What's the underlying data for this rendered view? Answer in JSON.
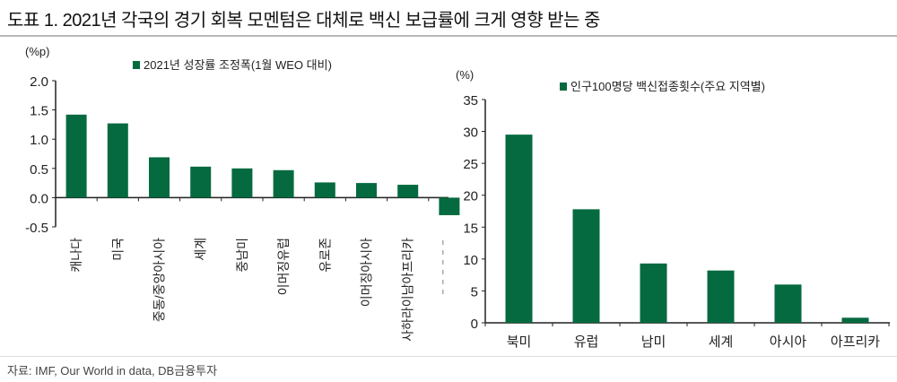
{
  "title": "도표 1. 2021년 각국의 경기 회복 모멘텀은 대체로 백신 보급률에 크게 영향 받는 중",
  "source": "자료: IMF, Our World in data, DB금융투자",
  "colors": {
    "bar": "#066a40",
    "axis": "#222222"
  },
  "chart_data": [
    {
      "type": "bar",
      "title": "",
      "legend": "2021년 성장률 조정폭(1월 WEO 대비)",
      "legend_placement": "top",
      "ylabel": "(%p)",
      "xlabel": "",
      "ylim": [
        -0.5,
        2.0
      ],
      "yticks": [
        "2.0",
        "1.5",
        "1.0",
        "0.5",
        "0.0",
        "-0.5"
      ],
      "ytick_values": [
        2.0,
        1.5,
        1.0,
        0.5,
        0.0,
        -0.5
      ],
      "categories": [
        "캐나다",
        "미국",
        "중동/중앙아시아",
        "세계",
        "중남미",
        "이머징유럽",
        "유로존",
        "이머징아시아",
        "사하라이남아프리카",
        ""
      ],
      "values": [
        1.42,
        1.27,
        0.69,
        0.53,
        0.5,
        0.47,
        0.26,
        0.25,
        0.22,
        -0.3
      ],
      "grid": false
    },
    {
      "type": "bar",
      "title": "",
      "legend": "인구100명당 백신접종횟수(주요 지역별)",
      "legend_placement": "top",
      "ylabel": "(%)",
      "xlabel": "",
      "ylim": [
        0,
        35
      ],
      "yticks": [
        "35",
        "30",
        "25",
        "20",
        "15",
        "10",
        "5",
        "0"
      ],
      "ytick_values": [
        35,
        30,
        25,
        20,
        15,
        10,
        5,
        0
      ],
      "categories": [
        "북미",
        "유럽",
        "남미",
        "세계",
        "아시아",
        "아프리카"
      ],
      "values": [
        29.5,
        17.8,
        9.3,
        8.2,
        6.0,
        0.8
      ],
      "grid": false
    }
  ]
}
